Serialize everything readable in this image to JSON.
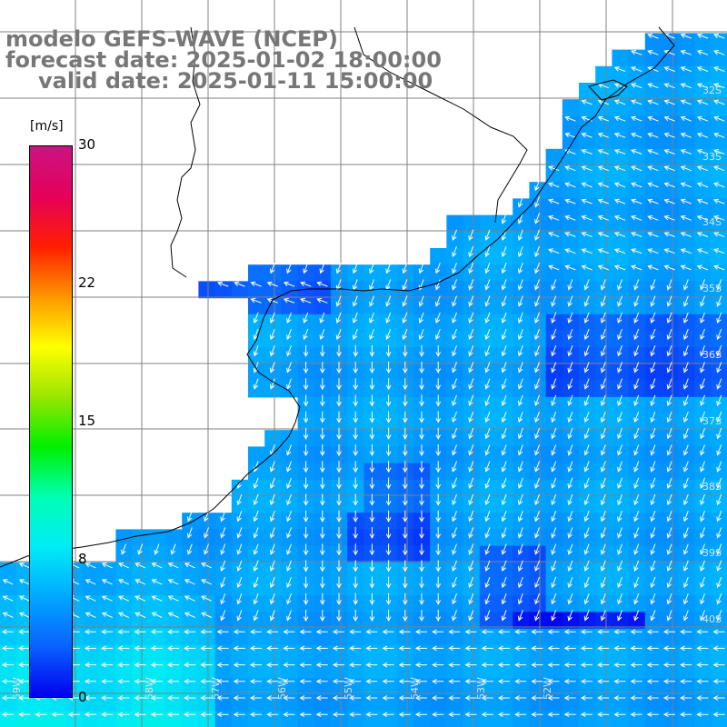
{
  "header": {
    "line1": "modelo GEFS-WAVE (NCEP)",
    "line2": "forecast date: 2025-01-02 18:00:00",
    "line3": "valid date: 2025-01-11 15:00:00"
  },
  "colorbar": {
    "unit": "[m/s]",
    "ticks": [
      "30",
      "22",
      "15",
      "8",
      "0"
    ],
    "min": 0,
    "max": 30,
    "colors": [
      "#0000ee",
      "#0a60ff",
      "#00a8ff",
      "#00ecf5",
      "#00ffb4",
      "#00f000",
      "#9ae600",
      "#ffff00",
      "#ff9600",
      "#ff1e00",
      "#e6005a",
      "#c81482"
    ]
  },
  "map": {
    "lat_labels": [
      "32S",
      "33S",
      "34S",
      "35S",
      "36S",
      "37S",
      "38S",
      "39S",
      "40S"
    ],
    "lon_labels": [
      "59W",
      "58W",
      "57W",
      "56W",
      "55W",
      "54W",
      "53W",
      "52W"
    ],
    "field": "wind speed and direction (arrows)",
    "land_color": "#ffffff",
    "coast_color": "#000000",
    "grid_color": "#808080"
  }
}
